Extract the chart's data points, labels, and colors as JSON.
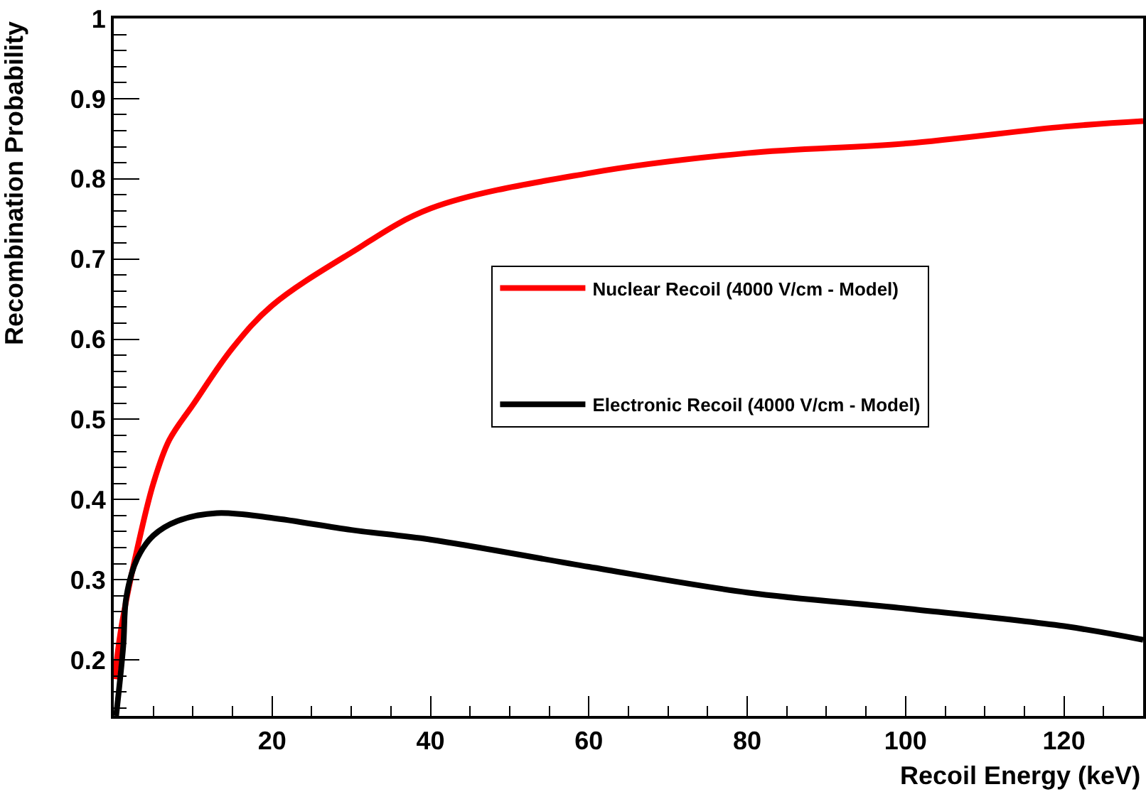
{
  "chart_data": {
    "type": "line",
    "xlabel": "Recoil Energy (keV)",
    "ylabel": "Recombination Probability",
    "xlim": [
      0,
      130
    ],
    "ylim": [
      0.13,
      1
    ],
    "xticks": [
      20,
      40,
      60,
      80,
      100,
      120
    ],
    "yticks": [
      0.2,
      0.3,
      0.4,
      0.5,
      0.6,
      0.7,
      0.8,
      0.9,
      1
    ],
    "grid": false,
    "legend": "right",
    "marker": "none",
    "line_style": "solid",
    "series": [
      {
        "name": "Nuclear Recoil (4000 V/cm - Model)",
        "color": "#ff0000",
        "x": [
          0.1,
          1,
          3,
          5,
          7,
          10,
          15,
          20,
          30,
          40,
          60,
          80,
          100,
          120,
          130
        ],
        "values": [
          0.176,
          0.243,
          0.34,
          0.42,
          0.474,
          0.518,
          0.589,
          0.642,
          0.708,
          0.763,
          0.807,
          0.832,
          0.844,
          0.865,
          0.872
        ]
      },
      {
        "name": "Electronic Recoil (4000 V/cm - Model)",
        "color": "#000000",
        "x": [
          0.3,
          1.2,
          1.6,
          3,
          5,
          8,
          13,
          20,
          30,
          40,
          60,
          80,
          100,
          120,
          130
        ],
        "values": [
          0.13,
          0.217,
          0.279,
          0.327,
          0.355,
          0.373,
          0.383,
          0.377,
          0.362,
          0.35,
          0.316,
          0.284,
          0.264,
          0.242,
          0.225
        ]
      }
    ]
  }
}
